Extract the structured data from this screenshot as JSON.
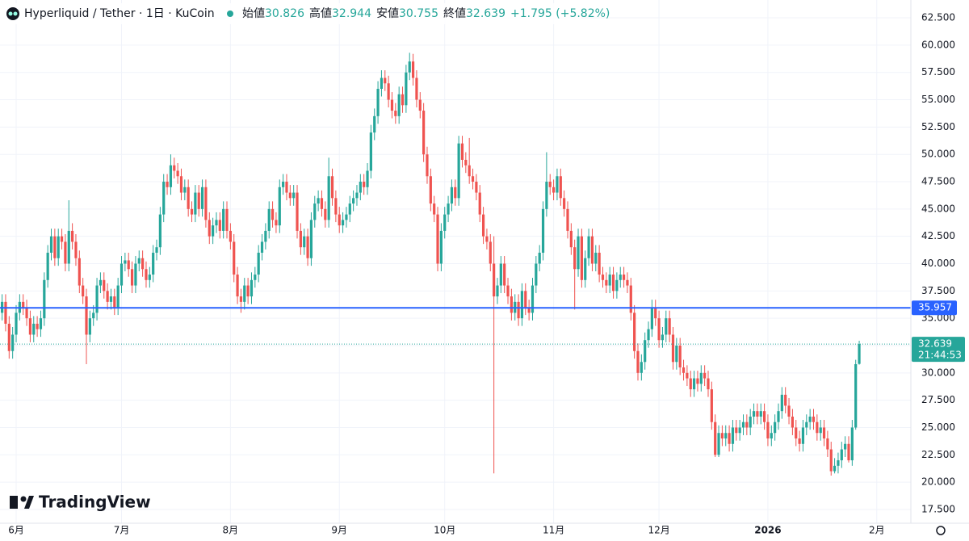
{
  "chart_data": {
    "type": "candlestick",
    "title": "Hyperliquid / Tether · 1日 · KuCoin",
    "ohlc_labels": [
      "始値",
      "高値",
      "安値",
      "終値"
    ],
    "change": "+1.795 (+5.82%)",
    "countdown": "21:44:53",
    "watermark": "TradingView",
    "up_color": "#26a69a",
    "down_color": "#ef5350",
    "grid": true,
    "hline": {
      "value": 35.957,
      "color": "#2962ff"
    },
    "xlim": [
      -0.6,
      258.7
    ],
    "ylim": [
      16.24,
      64.13
    ],
    "xticks": [
      {
        "value": 4,
        "label": "6月"
      },
      {
        "value": 34,
        "label": "7月"
      },
      {
        "value": 65,
        "label": "8月"
      },
      {
        "value": 96,
        "label": "9月"
      },
      {
        "value": 126,
        "label": "10月"
      },
      {
        "value": 157,
        "label": "11月"
      },
      {
        "value": 187,
        "label": "12月"
      },
      {
        "value": 218,
        "label": "2026"
      },
      {
        "value": 249,
        "label": "2月"
      }
    ],
    "yticks": [
      {
        "value": 17.5,
        "label": "17.500"
      },
      {
        "value": 20,
        "label": "20.000"
      },
      {
        "value": 22.5,
        "label": "22.500"
      },
      {
        "value": 25,
        "label": "25.000"
      },
      {
        "value": 27.5,
        "label": "27.500"
      },
      {
        "value": 30,
        "label": "30.000"
      },
      {
        "value": 32.5,
        "label": "32.500"
      },
      {
        "value": 35,
        "label": "35.000"
      },
      {
        "value": 37.5,
        "label": "37.500"
      },
      {
        "value": 40,
        "label": "40.000"
      },
      {
        "value": 42.5,
        "label": "42.500"
      },
      {
        "value": 45,
        "label": "45.000"
      },
      {
        "value": 47.5,
        "label": "47.500"
      },
      {
        "value": 50,
        "label": "50.000"
      },
      {
        "value": 52.5,
        "label": "52.500"
      },
      {
        "value": 55,
        "label": "55.000"
      },
      {
        "value": 57.5,
        "label": "57.500"
      },
      {
        "value": 60,
        "label": "60.000"
      },
      {
        "value": 62.5,
        "label": "62.500"
      }
    ],
    "open": [
      35.5,
      36.5,
      34.5,
      32.0,
      33.5,
      35.5,
      36.5,
      36.0,
      35.0,
      33.5,
      34.5,
      34.0,
      35.0,
      38.5,
      41.0,
      42.5,
      40.5,
      42.5,
      42.0,
      40.0,
      43.0,
      42.0,
      40.5,
      38.0,
      37.0,
      33.5,
      35.0,
      35.5,
      38.0,
      38.5,
      37.5,
      36.5,
      37.0,
      36.0,
      38.0,
      40.0,
      40.3,
      39.5,
      38.0,
      40.0,
      40.5,
      39.5,
      38.5,
      39.0,
      41.0,
      41.5,
      44.5,
      47.5,
      47.0,
      49.0,
      48.5,
      48.0,
      46.5,
      47.0,
      45.0,
      44.5,
      46.5,
      45.0,
      47.0,
      44.0,
      42.5,
      43.5,
      44.0,
      43.0,
      45.0,
      43.0,
      42.0,
      39.0,
      37.0,
      36.5,
      38.0,
      37.0,
      38.5,
      39.0,
      41.0,
      42.0,
      43.0,
      45.0,
      44.0,
      43.5,
      47.0,
      47.5,
      46.5,
      46.0,
      46.5,
      43.0,
      41.5,
      42.5,
      40.5,
      44.0,
      45.5,
      46.0,
      45.0,
      44.0,
      48.0,
      46.0,
      44.5,
      43.5,
      44.0,
      44.5,
      45.5,
      46.0,
      46.5,
      47.5,
      47.0,
      48.5,
      52.0,
      53.5,
      56.0,
      57.0,
      56.5,
      55.0,
      54.0,
      53.5,
      55.5,
      54.5,
      57.5,
      58.5,
      57.0,
      55.0,
      54.0,
      50.0,
      48.0,
      45.5,
      44.5,
      40.0,
      43.0,
      44.5,
      45.5,
      47.0,
      46.0,
      51.0,
      49.5,
      49.0,
      48.0,
      47.5,
      46.5,
      44.5,
      42.5,
      42.0,
      40.0,
      37.0,
      38.0,
      40.0,
      38.0,
      37.0,
      35.5,
      36.5,
      35.0,
      37.5,
      36.0,
      35.5,
      38.0,
      40.0,
      41.0,
      45.0,
      47.5,
      47.0,
      46.5,
      48.0,
      46.0,
      45.0,
      43.0,
      41.5,
      39.5,
      42.5,
      38.5,
      40.5,
      42.5,
      40.0,
      41.0,
      39.0,
      38.5,
      38.0,
      39.0,
      37.5,
      38.5,
      39.0,
      38.5,
      38.0,
      35.5,
      32.0,
      30.0,
      31.0,
      33.0,
      34.0,
      36.0,
      35.0,
      33.0,
      33.5,
      35.0,
      33.5,
      31.0,
      32.5,
      30.5,
      30.0,
      29.5,
      28.5,
      29.5,
      29.0,
      30.0,
      29.5,
      28.5,
      25.5,
      22.5,
      24.5,
      24.0,
      24.5,
      23.5,
      25.0,
      24.5,
      25.0,
      25.5,
      25.0,
      26.0,
      26.5,
      26.0,
      26.5,
      25.5,
      24.0,
      24.5,
      25.5,
      26.5,
      28.0,
      27.0,
      26.0,
      25.0,
      24.0,
      23.5,
      25.0,
      25.5,
      26.0,
      25.5,
      24.5,
      25.0,
      24.0,
      23.0,
      21.0,
      21.5,
      22.0,
      23.0,
      23.5,
      22.0,
      25.0,
      30.826
    ],
    "high": [
      37.2,
      37.2,
      35.2,
      34.2,
      36.2,
      37.2,
      37.2,
      36.7,
      35.7,
      35.2,
      35.2,
      35.7,
      39.2,
      41.7,
      43.2,
      43.2,
      43.2,
      43.2,
      42.7,
      45.8,
      43.7,
      42.7,
      41.2,
      38.7,
      37.7,
      35.7,
      36.2,
      38.7,
      39.2,
      39.2,
      38.2,
      37.7,
      37.7,
      38.7,
      40.7,
      41.0,
      41.0,
      40.2,
      40.7,
      41.2,
      41.2,
      40.2,
      39.7,
      41.7,
      42.2,
      45.2,
      48.2,
      48.2,
      50.0,
      49.7,
      49.2,
      48.7,
      47.7,
      47.7,
      45.7,
      47.2,
      47.2,
      47.7,
      47.7,
      44.7,
      44.2,
      44.7,
      44.7,
      45.7,
      45.7,
      43.7,
      42.7,
      39.7,
      37.7,
      38.7,
      38.7,
      39.2,
      39.7,
      41.7,
      42.7,
      43.7,
      45.7,
      45.7,
      44.7,
      47.7,
      48.2,
      48.2,
      47.2,
      47.2,
      47.2,
      43.7,
      43.2,
      43.2,
      44.7,
      46.2,
      46.7,
      46.7,
      45.7,
      49.7,
      48.7,
      46.7,
      45.2,
      44.7,
      45.2,
      46.2,
      46.7,
      47.2,
      48.2,
      48.2,
      49.2,
      52.7,
      54.2,
      56.7,
      57.7,
      57.7,
      57.2,
      55.7,
      54.7,
      56.2,
      56.2,
      58.2,
      59.3,
      59.2,
      57.7,
      55.7,
      54.7,
      50.7,
      48.7,
      46.2,
      45.2,
      43.7,
      45.2,
      46.2,
      47.7,
      47.7,
      51.7,
      51.7,
      50.2,
      51.5,
      48.7,
      48.2,
      47.2,
      45.2,
      43.2,
      42.7,
      42.5,
      38.7,
      40.7,
      40.7,
      38.7,
      37.7,
      37.2,
      37.2,
      38.2,
      38.2,
      36.7,
      38.7,
      40.7,
      41.7,
      45.7,
      50.2,
      48.2,
      47.7,
      48.7,
      48.7,
      46.7,
      45.7,
      43.7,
      42.2,
      43.2,
      43.2,
      41.2,
      43.2,
      43.2,
      41.7,
      41.7,
      39.7,
      39.2,
      39.7,
      39.7,
      39.2,
      39.7,
      39.7,
      39.2,
      38.7,
      36.2,
      32.7,
      31.7,
      33.7,
      34.7,
      36.7,
      36.7,
      35.7,
      34.2,
      35.7,
      35.7,
      34.2,
      33.2,
      33.2,
      31.2,
      30.7,
      30.2,
      30.2,
      30.2,
      30.7,
      30.7,
      30.2,
      29.2,
      26.2,
      25.2,
      25.2,
      25.2,
      25.2,
      25.7,
      25.7,
      25.7,
      26.2,
      26.2,
      26.7,
      27.2,
      27.2,
      27.2,
      27.2,
      26.2,
      25.2,
      26.2,
      27.2,
      28.7,
      28.7,
      27.7,
      26.7,
      25.7,
      24.7,
      25.7,
      26.2,
      26.7,
      26.7,
      26.2,
      25.7,
      25.7,
      24.7,
      23.7,
      22.2,
      22.7,
      23.7,
      24.2,
      24.2,
      25.7,
      31.2,
      32.944
    ],
    "low": [
      34.8,
      33.8,
      31.3,
      31.3,
      32.8,
      34.8,
      35.3,
      34.3,
      32.8,
      32.8,
      33.3,
      33.3,
      34.3,
      37.8,
      40.3,
      39.8,
      39.8,
      41.3,
      39.3,
      39.3,
      41.3,
      39.8,
      37.3,
      36.3,
      30.8,
      32.8,
      34.3,
      34.8,
      37.3,
      36.8,
      35.8,
      35.8,
      35.3,
      35.3,
      37.3,
      39.3,
      38.8,
      37.3,
      37.3,
      39.3,
      38.8,
      37.8,
      37.8,
      38.3,
      40.3,
      40.8,
      43.8,
      46.3,
      46.3,
      47.8,
      47.3,
      45.8,
      45.8,
      44.3,
      43.8,
      43.8,
      44.3,
      44.3,
      43.3,
      41.8,
      41.8,
      42.8,
      42.3,
      42.3,
      42.3,
      41.3,
      38.3,
      36.3,
      35.5,
      35.8,
      36.3,
      36.3,
      37.8,
      38.3,
      40.3,
      41.3,
      42.3,
      43.3,
      42.8,
      42.8,
      46.3,
      45.8,
      45.3,
      45.3,
      42.3,
      40.8,
      40.8,
      39.8,
      39.8,
      43.3,
      44.8,
      44.3,
      43.3,
      43.3,
      45.3,
      43.8,
      42.8,
      42.8,
      43.3,
      43.8,
      44.8,
      45.3,
      45.8,
      46.3,
      46.3,
      47.8,
      51.3,
      52.8,
      55.3,
      55.8,
      54.3,
      53.3,
      52.8,
      52.8,
      53.8,
      53.8,
      56.8,
      56.3,
      54.3,
      53.3,
      49.3,
      47.3,
      44.8,
      43.8,
      39.3,
      39.3,
      42.3,
      43.8,
      44.8,
      45.3,
      45.3,
      48.8,
      48.3,
      47.3,
      46.8,
      45.8,
      43.8,
      41.8,
      41.3,
      39.3,
      20.8,
      36.3,
      37.3,
      37.3,
      36.3,
      34.8,
      34.8,
      34.3,
      34.3,
      35.3,
      34.8,
      34.8,
      37.3,
      39.3,
      40.3,
      44.3,
      46.3,
      45.8,
      45.8,
      45.3,
      44.3,
      42.3,
      40.8,
      35.8,
      38.8,
      37.8,
      37.8,
      39.8,
      39.3,
      39.3,
      38.3,
      37.8,
      37.3,
      37.3,
      36.8,
      36.8,
      37.8,
      37.8,
      37.3,
      34.8,
      31.3,
      29.3,
      29.3,
      30.3,
      32.3,
      33.3,
      34.3,
      32.3,
      32.3,
      32.8,
      32.8,
      30.3,
      30.3,
      29.8,
      29.3,
      28.8,
      27.8,
      27.8,
      28.3,
      28.3,
      28.8,
      27.8,
      24.8,
      22.3,
      22.3,
      23.3,
      23.3,
      22.8,
      22.8,
      23.8,
      23.8,
      24.3,
      24.3,
      24.3,
      25.3,
      25.3,
      25.3,
      24.8,
      23.3,
      23.3,
      23.8,
      24.8,
      25.8,
      26.3,
      25.3,
      24.3,
      23.3,
      22.8,
      22.8,
      24.3,
      24.8,
      24.8,
      23.8,
      23.8,
      23.3,
      22.3,
      20.6,
      20.8,
      20.8,
      21.3,
      22.3,
      21.8,
      21.5,
      24.8,
      30.755
    ],
    "close": [
      36.5,
      34.5,
      32.0,
      33.5,
      35.5,
      36.5,
      36.0,
      35.0,
      33.5,
      34.5,
      34.0,
      35.0,
      38.5,
      41.0,
      42.5,
      40.5,
      42.5,
      42.0,
      40.0,
      43.0,
      42.0,
      40.5,
      38.0,
      37.0,
      33.5,
      35.0,
      35.5,
      38.0,
      38.5,
      37.5,
      36.5,
      37.0,
      36.0,
      38.0,
      40.0,
      40.3,
      39.5,
      38.0,
      40.0,
      40.5,
      39.5,
      38.5,
      39.0,
      41.0,
      41.5,
      44.5,
      47.5,
      47.0,
      49.0,
      48.5,
      48.0,
      46.5,
      47.0,
      45.0,
      44.5,
      46.5,
      45.0,
      47.0,
      44.0,
      42.5,
      43.5,
      44.0,
      43.0,
      45.0,
      43.0,
      42.0,
      39.0,
      37.0,
      36.5,
      38.0,
      37.0,
      38.5,
      39.0,
      41.0,
      42.0,
      43.0,
      45.0,
      44.0,
      43.5,
      47.0,
      47.5,
      46.5,
      46.0,
      46.5,
      43.0,
      41.5,
      42.5,
      40.5,
      44.0,
      45.5,
      46.0,
      45.0,
      44.0,
      48.0,
      46.0,
      44.5,
      43.5,
      44.0,
      44.5,
      45.5,
      46.0,
      46.5,
      47.5,
      47.0,
      48.5,
      52.0,
      53.5,
      56.0,
      57.0,
      56.5,
      55.0,
      54.0,
      53.5,
      55.5,
      54.5,
      57.5,
      58.5,
      57.0,
      55.0,
      54.0,
      50.0,
      48.0,
      45.5,
      44.5,
      40.0,
      43.0,
      44.5,
      45.5,
      47.0,
      46.0,
      51.0,
      49.5,
      49.0,
      48.0,
      47.5,
      46.5,
      44.5,
      42.5,
      42.0,
      40.0,
      37.0,
      38.0,
      40.0,
      38.0,
      37.0,
      35.5,
      36.5,
      35.0,
      37.5,
      36.0,
      35.5,
      38.0,
      40.0,
      41.0,
      45.0,
      47.5,
      47.0,
      46.5,
      48.0,
      46.0,
      45.0,
      43.0,
      41.5,
      39.5,
      42.5,
      38.5,
      40.5,
      42.5,
      40.0,
      41.0,
      39.0,
      38.5,
      38.0,
      39.0,
      37.5,
      38.5,
      39.0,
      38.5,
      38.0,
      35.5,
      32.0,
      30.0,
      31.0,
      33.0,
      34.0,
      36.0,
      35.0,
      33.0,
      33.5,
      35.0,
      33.5,
      31.0,
      32.5,
      30.5,
      30.0,
      29.5,
      28.5,
      29.5,
      29.0,
      30.0,
      29.5,
      28.5,
      25.5,
      22.5,
      24.5,
      24.0,
      24.5,
      23.5,
      25.0,
      24.5,
      25.0,
      25.5,
      25.0,
      26.0,
      26.5,
      26.0,
      26.5,
      25.5,
      24.0,
      24.5,
      25.5,
      26.5,
      28.0,
      27.0,
      26.0,
      25.0,
      24.0,
      23.5,
      25.0,
      25.5,
      26.0,
      25.5,
      24.5,
      25.0,
      24.0,
      23.0,
      21.0,
      21.5,
      22.0,
      23.0,
      23.5,
      22.0,
      25.0,
      30.8,
      32.639
    ]
  }
}
